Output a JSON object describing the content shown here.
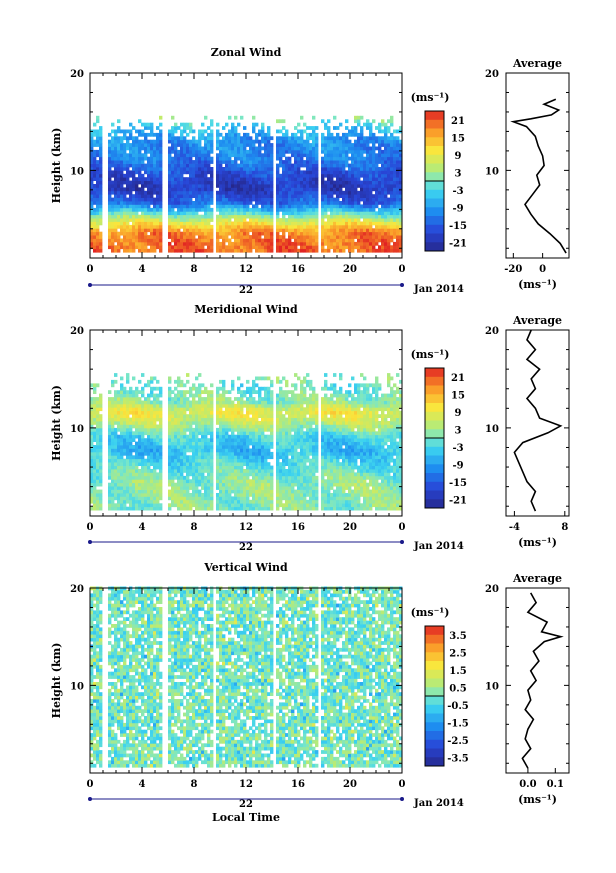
{
  "chart_data": [
    {
      "type": "heatmap",
      "title": "Zonal Wind",
      "xlabel": "",
      "ylabel": "Height (km)",
      "x_ticks": [
        "0",
        "4",
        "8",
        "12",
        "16",
        "20",
        "0"
      ],
      "xlim": [
        0,
        24
      ],
      "y_ticks": [
        "10",
        "20"
      ],
      "ylim": [
        1,
        20
      ],
      "date_label": "22",
      "date_suffix": "Jan 2014",
      "colorbar": {
        "unit": "(ms⁻¹)",
        "ticks": [
          "21",
          "15",
          "9",
          "3",
          "-3",
          "-9",
          "-15",
          "-21"
        ],
        "range": [
          -24,
          24
        ]
      },
      "data_gaps_hours": [
        [
          1.0,
          1.3
        ],
        [
          5.6,
          6.0
        ],
        [
          9.5,
          9.8
        ],
        [
          14.0,
          14.4
        ],
        [
          17.5,
          17.8
        ]
      ],
      "data_top_km": 15.5,
      "profile_anchors_km": [
        [
          2,
          20
        ],
        [
          3.5,
          18
        ],
        [
          4.5,
          9
        ],
        [
          6.5,
          -14
        ],
        [
          8,
          -20
        ],
        [
          9.5,
          -17
        ],
        [
          11,
          -12
        ],
        [
          13,
          -10
        ],
        [
          14.5,
          -4
        ],
        [
          15.2,
          2
        ]
      ],
      "average": {
        "title": "Average",
        "x_ticks": [
          "-20",
          "0"
        ],
        "xlim": [
          -25,
          18
        ],
        "y_ticks": [
          "10",
          "20"
        ],
        "unit": "(ms⁻¹)",
        "profile": [
          {
            "h": 1.5,
            "v": 16
          },
          {
            "h": 2.5,
            "v": 12
          },
          {
            "h": 3.5,
            "v": 5
          },
          {
            "h": 4.5,
            "v": -3
          },
          {
            "h": 5.5,
            "v": -8
          },
          {
            "h": 6.5,
            "v": -12
          },
          {
            "h": 7.5,
            "v": -7
          },
          {
            "h": 8.5,
            "v": -2
          },
          {
            "h": 9.5,
            "v": -4
          },
          {
            "h": 10.5,
            "v": 1
          },
          {
            "h": 11.5,
            "v": 0
          },
          {
            "h": 12.5,
            "v": -3
          },
          {
            "h": 13.5,
            "v": -5
          },
          {
            "h": 14.5,
            "v": -11
          },
          {
            "h": 15.0,
            "v": -20
          },
          {
            "h": 15.3,
            "v": -8
          },
          {
            "h": 15.7,
            "v": 6
          },
          {
            "h": 16.2,
            "v": 11
          },
          {
            "h": 16.8,
            "v": 1
          },
          {
            "h": 17.3,
            "v": 9
          }
        ]
      }
    },
    {
      "type": "heatmap",
      "title": "Meridional Wind",
      "xlabel": "",
      "ylabel": "Height (km)",
      "x_ticks": [
        "0",
        "4",
        "8",
        "12",
        "16",
        "20",
        "0"
      ],
      "xlim": [
        0,
        24
      ],
      "y_ticks": [
        "10",
        "20"
      ],
      "ylim": [
        1,
        20
      ],
      "date_label": "22",
      "date_suffix": "Jan 2014",
      "colorbar": {
        "unit": "(ms⁻¹)",
        "ticks": [
          "21",
          "15",
          "9",
          "3",
          "-3",
          "-9",
          "-15",
          "-21"
        ],
        "range": [
          -24,
          24
        ]
      },
      "data_gaps_hours": [
        [
          1.0,
          1.3
        ],
        [
          5.6,
          6.0
        ],
        [
          9.5,
          9.8
        ],
        [
          14.0,
          14.4
        ],
        [
          17.5,
          17.8
        ]
      ],
      "data_top_km": 15.5,
      "profile_anchors_km": [
        [
          2,
          1
        ],
        [
          4,
          2
        ],
        [
          6,
          -2
        ],
        [
          7.5,
          -6
        ],
        [
          9,
          -3
        ],
        [
          10.5,
          6
        ],
        [
          11.5,
          9
        ],
        [
          12.5,
          2
        ],
        [
          14,
          -1
        ],
        [
          15.2,
          1
        ]
      ],
      "average": {
        "title": "Average",
        "x_ticks": [
          "-4",
          "8"
        ],
        "xlim": [
          -6,
          9
        ],
        "y_ticks": [
          "10",
          "20"
        ],
        "unit": "(ms⁻¹)",
        "profile": [
          {
            "h": 1.5,
            "v": 1
          },
          {
            "h": 2.5,
            "v": 0
          },
          {
            "h": 3.5,
            "v": 1
          },
          {
            "h": 4.5,
            "v": -1
          },
          {
            "h": 5.5,
            "v": -2
          },
          {
            "h": 6.5,
            "v": -3
          },
          {
            "h": 7.5,
            "v": -4
          },
          {
            "h": 8.5,
            "v": -2
          },
          {
            "h": 9.5,
            "v": 4
          },
          {
            "h": 10.2,
            "v": 7
          },
          {
            "h": 11.0,
            "v": 2
          },
          {
            "h": 12.0,
            "v": 1
          },
          {
            "h": 13.0,
            "v": -1
          },
          {
            "h": 14.0,
            "v": 1
          },
          {
            "h": 15.0,
            "v": 0
          },
          {
            "h": 16.0,
            "v": 2
          },
          {
            "h": 17.0,
            "v": -1
          },
          {
            "h": 18.0,
            "v": 1
          },
          {
            "h": 19.0,
            "v": -1
          },
          {
            "h": 20.0,
            "v": 0
          }
        ]
      }
    },
    {
      "type": "heatmap",
      "title": "Vertical Wind",
      "xlabel": "Local Time",
      "ylabel": "Height (km)",
      "x_ticks": [
        "0",
        "4",
        "8",
        "12",
        "16",
        "20",
        "0"
      ],
      "xlim": [
        0,
        24
      ],
      "y_ticks": [
        "10",
        "20"
      ],
      "ylim": [
        1,
        20
      ],
      "date_label": "22",
      "date_suffix": "Jan 2014",
      "colorbar": {
        "unit": "(ms⁻¹)",
        "ticks": [
          "3.5",
          "2.5",
          "1.5",
          "0.5",
          "-0.5",
          "-1.5",
          "-2.5",
          "-3.5"
        ],
        "range": [
          -4,
          4
        ]
      },
      "data_gaps_hours": [
        [
          1.0,
          1.3
        ],
        [
          5.6,
          6.0
        ],
        [
          9.5,
          9.8
        ],
        [
          14.0,
          14.4
        ],
        [
          17.5,
          17.8
        ]
      ],
      "data_top_km": 20,
      "profile_anchors_km": [
        [
          2,
          0
        ],
        [
          20,
          0
        ]
      ],
      "average": {
        "title": "Average",
        "x_ticks": [
          "0.0",
          "0.1"
        ],
        "xlim": [
          -0.08,
          0.15
        ],
        "y_ticks": [
          "10",
          "20"
        ],
        "unit": "(ms⁻¹)",
        "profile": [
          {
            "h": 1.5,
            "v": 0.0
          },
          {
            "h": 2.5,
            "v": -0.02
          },
          {
            "h": 3.5,
            "v": 0.01
          },
          {
            "h": 4.5,
            "v": -0.01
          },
          {
            "h": 5.5,
            "v": 0.0
          },
          {
            "h": 6.5,
            "v": 0.02
          },
          {
            "h": 7.5,
            "v": -0.01
          },
          {
            "h": 8.5,
            "v": 0.01
          },
          {
            "h": 9.5,
            "v": 0.0
          },
          {
            "h": 10.5,
            "v": 0.03
          },
          {
            "h": 11.5,
            "v": 0.01
          },
          {
            "h": 12.5,
            "v": 0.04
          },
          {
            "h": 13.5,
            "v": 0.02
          },
          {
            "h": 14.5,
            "v": 0.06
          },
          {
            "h": 15.0,
            "v": 0.12
          },
          {
            "h": 15.5,
            "v": 0.05
          },
          {
            "h": 16.5,
            "v": 0.07
          },
          {
            "h": 17.5,
            "v": 0.0
          },
          {
            "h": 18.5,
            "v": 0.03
          },
          {
            "h": 19.5,
            "v": 0.01
          }
        ]
      }
    }
  ]
}
